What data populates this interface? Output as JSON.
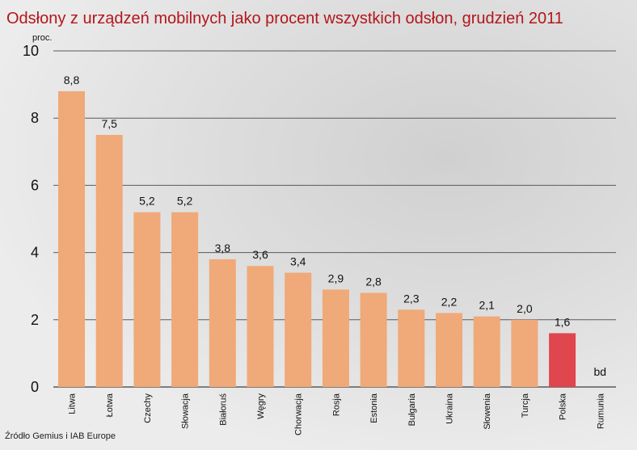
{
  "header": {
    "title": "Odsłony z urządzeń mobilnych jako procent wszystkich odsłon, grudzień 2011"
  },
  "footer": {
    "source": "Źródło Gemius i IAB Europe"
  },
  "colors": {
    "bar": "#f0a978",
    "highlight": "#e0464e",
    "gridline": "#5a5a5a",
    "title": "#b3161b"
  },
  "chart_data": {
    "type": "bar",
    "title": "Odsłony z urządzeń mobilnych jako procent wszystkich odsłon, grudzień 2011",
    "ylabel": "proc.",
    "xlabel": "",
    "ylim": [
      0,
      10
    ],
    "yticks": [
      "0",
      "2",
      "4",
      "6",
      "8",
      "10"
    ],
    "grid": true,
    "categories": [
      "Litwa",
      "Łotwa",
      "Czechy",
      "Słowacja",
      "Białoruś",
      "Węgry",
      "Chorwacja",
      "Rosja",
      "Estonia",
      "Bułgaria",
      "Ukraina",
      "Słowenia",
      "Turcja",
      "Polska",
      "Rumunia"
    ],
    "values": [
      8.8,
      7.5,
      5.2,
      5.2,
      3.8,
      3.6,
      3.4,
      2.9,
      2.8,
      2.3,
      2.2,
      2.1,
      2.0,
      1.6,
      null
    ],
    "value_labels": [
      "8,8",
      "7,5",
      "5,2",
      "5,2",
      "3,8",
      "3,6",
      "3,4",
      "2,9",
      "2,8",
      "2,3",
      "2,2",
      "2,1",
      "2,0",
      "1,6",
      "bd"
    ],
    "highlight_category": "Polska"
  }
}
